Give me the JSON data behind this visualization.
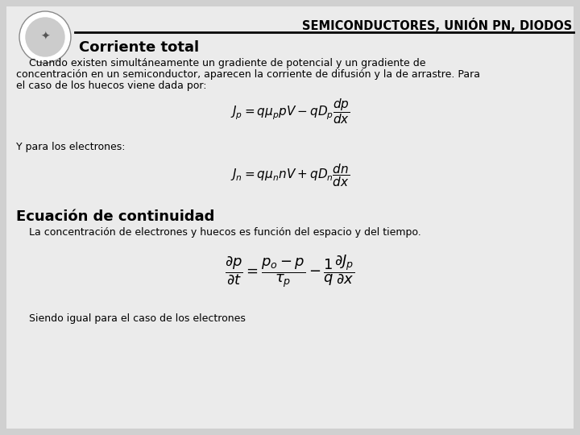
{
  "background_color": "#d0d0d0",
  "slide_background": "#e8e8e8",
  "header_text": "SEMICONDUCTORES, UNIÓN PN, DIODOS",
  "header_fontsize": 10.5,
  "header_color": "#000000",
  "title1": "Corriente total",
  "title1_fontsize": 13,
  "para1_line1": "    Cuando existen simultáneamente un gradiente de potencial y un gradiente de",
  "para1_line2": "concentración en un semiconductor, aparecen la corriente de difusión y la de arrastre. Para",
  "para1_line3": "el caso de los huecos viene dada por:",
  "para1_fontsize": 9.0,
  "formula1": "$J_p = q\\mu_p pV - qD_p \\dfrac{dp}{dx}$",
  "formula1_fontsize": 11,
  "label_electrons": "Y para los electrones:",
  "label_electrons_fontsize": 9.0,
  "formula2": "$J_n = q\\mu_n nV + qD_n \\dfrac{dn}{dx}$",
  "formula2_fontsize": 11,
  "title2": "Ecuación de continuidad",
  "title2_fontsize": 13,
  "para2": "    La concentración de electrones y huecos es función del espacio y del tiempo.",
  "para2_fontsize": 9.0,
  "formula3": "$\\dfrac{\\partial p}{\\partial t} = \\dfrac{p_o - p}{\\tau_p} - \\dfrac{1}{q} \\dfrac{\\partial J_p}{\\partial x}$",
  "formula3_fontsize": 13,
  "para3": "    Siendo igual para el caso de los electrones",
  "para3_fontsize": 9.0,
  "line_color": "#000000"
}
